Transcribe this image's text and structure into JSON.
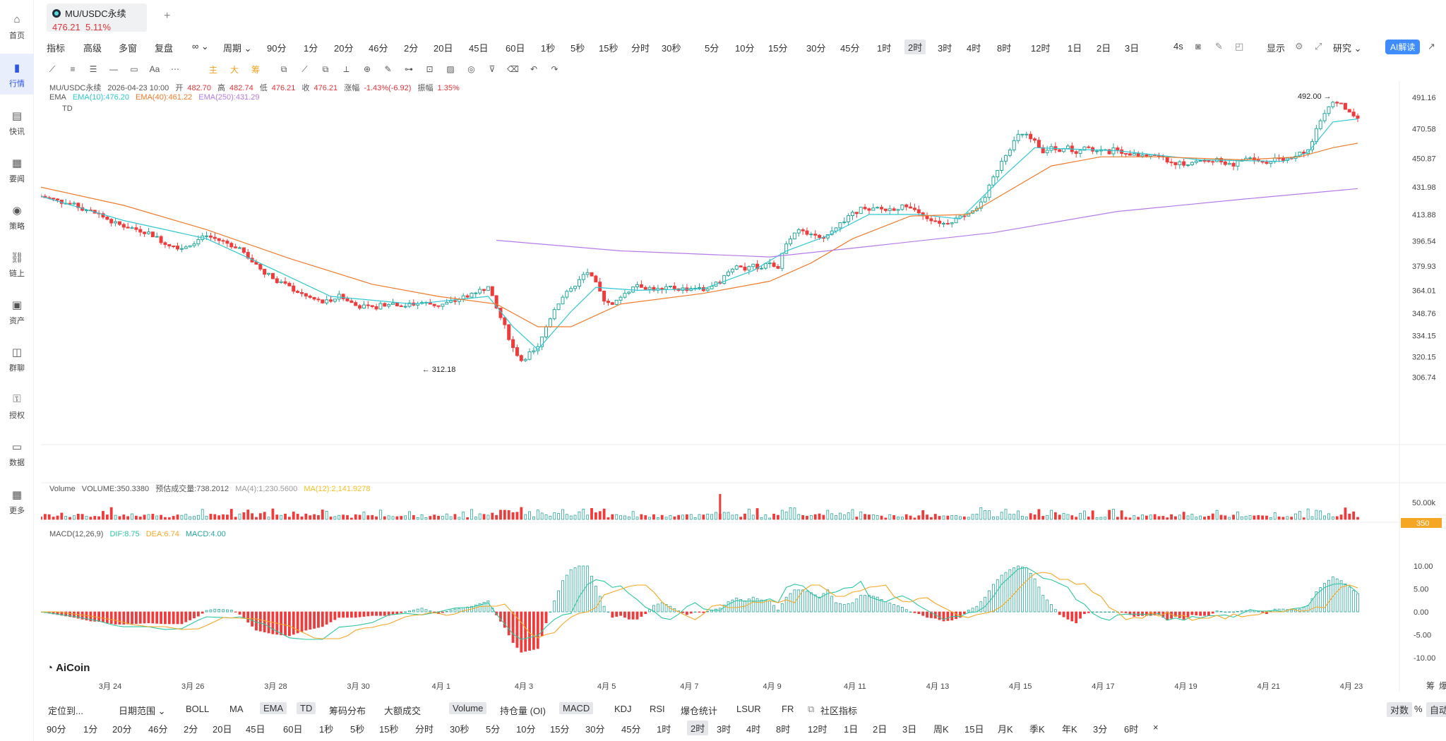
{
  "nav": [
    {
      "label": "首页",
      "icon": "home-icon"
    },
    {
      "label": "行情",
      "icon": "chart-bars-icon",
      "active": true
    },
    {
      "label": "快讯",
      "icon": "news-icon"
    },
    {
      "label": "要闻",
      "icon": "document-icon"
    },
    {
      "label": "策略",
      "icon": "robot-icon"
    },
    {
      "label": "链上",
      "icon": "chain-icon"
    },
    {
      "label": "资产",
      "icon": "wallet-icon"
    },
    {
      "label": "群聊",
      "icon": "chat-icon"
    },
    {
      "label": "授权",
      "icon": "key-icon"
    },
    {
      "label": "数据",
      "icon": "monitor-icon"
    },
    {
      "label": "更多",
      "icon": "grid-icon"
    }
  ],
  "tab": {
    "symbol": "MU/USDC永续",
    "price": "476.21",
    "change": "5.11%",
    "add": "+"
  },
  "toolbar1": {
    "left": [
      "指标",
      "高级",
      "多窗",
      "复盘",
      "∞ ⌄",
      "周期 ⌄"
    ],
    "periods": [
      "90分",
      "1分",
      "20分",
      "46分",
      "2分",
      "20日",
      "45日",
      "60日",
      "1秒",
      "5秒",
      "15秒",
      "分时",
      "30秒",
      "5分",
      "10分",
      "15分",
      "30分",
      "45分",
      "1时",
      "2时",
      "3时",
      "4时",
      "8时",
      "12时",
      "1日",
      "2日",
      "3日"
    ],
    "selected_period": "2时",
    "right": [
      "4s",
      "显示",
      "研究 ⌄"
    ],
    "ai_label": "AI解读"
  },
  "toolbar2": {
    "labels": [
      "主",
      "大",
      "筹"
    ]
  },
  "legend": {
    "main": {
      "symbol": "MU/USDC永续",
      "time": "2026-04-23 10:00",
      "open_label": "开",
      "open": "482.70",
      "high_label": "高",
      "high": "482.74",
      "low_label": "低",
      "low": "476.21",
      "close_label": "收",
      "close": "476.21",
      "chg_label": "涨幅",
      "chg": "-1.43%(-6.92)",
      "amp_label": "振幅",
      "amp": "1.35%"
    },
    "ema": {
      "name": "EMA",
      "e10": "EMA(10):476.20",
      "e40": "EMA(40):461.22",
      "e250": "EMA(250):431.29"
    },
    "td": "TD",
    "volume": {
      "name": "Volume",
      "vol": "VOLUME:350.3380",
      "est": "预估成交量:738.2012",
      "ma4": "MA(4):1,230.5600",
      "ma12": "MA(12):2,141.9278"
    },
    "macd": {
      "name": "MACD(12,26,9)",
      "dif": "DIF:8.75",
      "dea": "DEA:6.74",
      "macd": "MACD:4.00"
    }
  },
  "colors": {
    "up": "#26a69a",
    "down": "#ef3b3b",
    "ema10": "#2ec7d3",
    "ema40": "#f07b2c",
    "ema250": "#b57bea",
    "dea": "#f5a623",
    "accent": "#3f8cff"
  },
  "chart_data": {
    "type": "candlestick",
    "price_axis_ticks": [
      491.16,
      470.58,
      450.87,
      431.98,
      413.88,
      396.54,
      379.93,
      364.01,
      348.76,
      334.15,
      320.15,
      306.74
    ],
    "volume_axis_ticks": [
      "50.00k"
    ],
    "volume_last_label": "350",
    "macd_axis_ticks": [
      10.0,
      5.0,
      0.0,
      -5.0,
      -10.0
    ],
    "date_labels": [
      "3月 24",
      "3月 26",
      "3月 28",
      "3月 30",
      "4月 1",
      "4月 3",
      "4月 5",
      "4月 7",
      "4月 9",
      "4月 11",
      "4月 13",
      "4月 15",
      "4月 17",
      "4月 19",
      "4月 21",
      "4月 23"
    ],
    "high_marker": "492.00",
    "low_marker": "312.18",
    "close_path": [
      [
        0,
        426
      ],
      [
        8,
        420
      ],
      [
        14,
        414
      ],
      [
        18,
        408
      ],
      [
        22,
        405
      ],
      [
        26,
        402
      ],
      [
        30,
        395
      ],
      [
        34,
        392
      ],
      [
        40,
        400
      ],
      [
        44,
        396
      ],
      [
        48,
        392
      ],
      [
        52,
        380
      ],
      [
        56,
        372
      ],
      [
        60,
        366
      ],
      [
        64,
        360
      ],
      [
        68,
        356
      ],
      [
        72,
        360
      ],
      [
        76,
        354
      ],
      [
        80,
        352
      ],
      [
        84,
        356
      ],
      [
        88,
        354
      ],
      [
        92,
        356
      ],
      [
        96,
        354
      ],
      [
        100,
        357
      ],
      [
        104,
        362
      ],
      [
        108,
        366
      ],
      [
        110,
        352
      ],
      [
        112,
        340
      ],
      [
        114,
        326
      ],
      [
        116,
        318
      ],
      [
        118,
        322
      ],
      [
        120,
        326
      ],
      [
        122,
        340
      ],
      [
        124,
        352
      ],
      [
        126,
        360
      ],
      [
        128,
        364
      ],
      [
        130,
        372
      ],
      [
        132,
        376
      ],
      [
        134,
        368
      ],
      [
        136,
        358
      ],
      [
        138,
        354
      ],
      [
        140,
        360
      ],
      [
        142,
        364
      ],
      [
        144,
        368
      ],
      [
        146,
        366
      ],
      [
        148,
        365
      ],
      [
        150,
        364
      ],
      [
        152,
        366
      ],
      [
        154,
        365
      ],
      [
        156,
        365
      ],
      [
        158,
        366
      ],
      [
        160,
        364
      ],
      [
        162,
        366
      ],
      [
        164,
        370
      ],
      [
        166,
        376
      ],
      [
        168,
        380
      ],
      [
        170,
        378
      ],
      [
        172,
        380
      ],
      [
        174,
        379
      ],
      [
        176,
        382
      ],
      [
        178,
        378
      ],
      [
        180,
        396
      ],
      [
        182,
        402
      ],
      [
        184,
        404
      ],
      [
        186,
        400
      ],
      [
        188,
        398
      ],
      [
        190,
        402
      ],
      [
        192,
        406
      ],
      [
        194,
        410
      ],
      [
        196,
        414
      ],
      [
        198,
        418
      ],
      [
        200,
        416
      ],
      [
        202,
        418
      ],
      [
        204,
        417
      ],
      [
        206,
        418
      ],
      [
        208,
        419
      ],
      [
        210,
        418
      ],
      [
        212,
        414
      ],
      [
        214,
        412
      ],
      [
        216,
        410
      ],
      [
        218,
        408
      ],
      [
        220,
        410
      ],
      [
        222,
        412
      ],
      [
        224,
        416
      ],
      [
        226,
        418
      ],
      [
        228,
        426
      ],
      [
        230,
        438
      ],
      [
        232,
        450
      ],
      [
        234,
        458
      ],
      [
        236,
        466
      ],
      [
        238,
        466
      ],
      [
        240,
        462
      ],
      [
        242,
        456
      ],
      [
        244,
        458
      ],
      [
        246,
        455
      ],
      [
        248,
        458
      ],
      [
        250,
        454
      ],
      [
        252,
        460
      ],
      [
        254,
        456
      ],
      [
        256,
        458
      ],
      [
        258,
        455
      ],
      [
        260,
        458
      ],
      [
        262,
        453
      ],
      [
        264,
        455
      ],
      [
        266,
        452
      ],
      [
        268,
        454
      ],
      [
        270,
        452
      ],
      [
        272,
        449
      ],
      [
        274,
        448
      ],
      [
        276,
        447
      ],
      [
        278,
        449
      ],
      [
        280,
        450
      ],
      [
        282,
        448
      ],
      [
        284,
        450
      ],
      [
        286,
        448
      ],
      [
        288,
        447
      ],
      [
        290,
        450
      ],
      [
        292,
        452
      ],
      [
        294,
        449
      ],
      [
        296,
        448
      ],
      [
        298,
        451
      ],
      [
        300,
        450
      ],
      [
        302,
        452
      ],
      [
        304,
        455
      ],
      [
        306,
        456
      ],
      [
        308,
        470
      ],
      [
        310,
        482
      ],
      [
        312,
        488
      ],
      [
        314,
        486
      ],
      [
        316,
        482
      ],
      [
        318,
        476
      ]
    ],
    "ema10_path": [
      [
        0,
        426
      ],
      [
        20,
        410
      ],
      [
        40,
        398
      ],
      [
        56,
        378
      ],
      [
        70,
        360
      ],
      [
        90,
        355
      ],
      [
        108,
        360
      ],
      [
        114,
        340
      ],
      [
        120,
        325
      ],
      [
        128,
        350
      ],
      [
        134,
        366
      ],
      [
        144,
        364
      ],
      [
        160,
        365
      ],
      [
        172,
        377
      ],
      [
        180,
        390
      ],
      [
        190,
        400
      ],
      [
        200,
        414
      ],
      [
        212,
        414
      ],
      [
        222,
        411
      ],
      [
        232,
        438
      ],
      [
        240,
        458
      ],
      [
        260,
        456
      ],
      [
        280,
        450
      ],
      [
        300,
        449
      ],
      [
        306,
        455
      ],
      [
        312,
        475
      ],
      [
        318,
        477
      ]
    ],
    "ema40_path": [
      [
        0,
        432
      ],
      [
        20,
        420
      ],
      [
        40,
        404
      ],
      [
        60,
        385
      ],
      [
        80,
        368
      ],
      [
        96,
        360
      ],
      [
        110,
        355
      ],
      [
        120,
        340
      ],
      [
        128,
        340
      ],
      [
        140,
        355
      ],
      [
        160,
        362
      ],
      [
        176,
        370
      ],
      [
        186,
        382
      ],
      [
        196,
        398
      ],
      [
        210,
        413
      ],
      [
        224,
        414
      ],
      [
        234,
        430
      ],
      [
        244,
        446
      ],
      [
        256,
        452
      ],
      [
        270,
        452
      ],
      [
        290,
        450
      ],
      [
        304,
        452
      ],
      [
        312,
        458
      ],
      [
        318,
        461
      ]
    ],
    "ema250_path": [
      [
        110,
        397
      ],
      [
        140,
        390
      ],
      [
        176,
        386
      ],
      [
        200,
        393
      ],
      [
        230,
        402
      ],
      [
        260,
        416
      ],
      [
        290,
        424
      ],
      [
        318,
        431
      ]
    ]
  },
  "bottom1": {
    "locate": "定位到...",
    "range": "日期范围 ⌄",
    "items": [
      "BOLL",
      "MA",
      "EMA",
      "TD",
      "筹码分布",
      "大额成交",
      "Volume",
      "持仓量 (OI)",
      "MACD",
      "KDJ",
      "RSI",
      "爆仓统计",
      "LSUR",
      "FR",
      "社区指标"
    ],
    "right": [
      "对数",
      "%",
      "自动"
    ]
  },
  "bottom2": {
    "items": [
      "90分",
      "1分",
      "20分",
      "46分",
      "2分",
      "20日",
      "45日",
      "60日",
      "1秒",
      "5秒",
      "15秒",
      "分时",
      "30秒",
      "5分",
      "10分",
      "15分",
      "30分",
      "45分",
      "1时",
      "2时",
      "3时",
      "4时",
      "8时",
      "12时",
      "1日",
      "2日",
      "3日",
      "周K",
      "15日",
      "月K",
      "季K",
      "年K",
      "3分",
      "6时",
      "×"
    ],
    "selected": "2时"
  },
  "brand": "AiCoin",
  "corner_labels": [
    "筹",
    "爆"
  ]
}
